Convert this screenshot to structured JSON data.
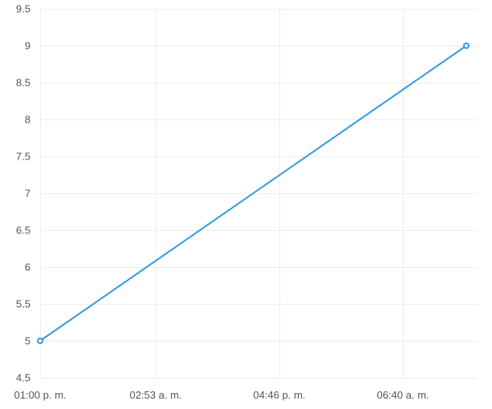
{
  "chart_data": {
    "type": "line",
    "title": "",
    "xlabel": "",
    "ylabel": "",
    "x_tick_labels": [
      "01:00 p. m.",
      "02:53 a. m.",
      "04:46 p. m.",
      "06:40 a. m."
    ],
    "y_ticks": [
      4.5,
      5,
      5.5,
      6,
      6.5,
      7,
      7.5,
      8,
      8.5,
      9,
      9.5
    ],
    "y_tick_labels": [
      "4.5",
      "5",
      "5.5",
      "6",
      "6.5",
      "7",
      "7.5",
      "8",
      "8.5",
      "9",
      "9.5"
    ],
    "ylim": [
      4.5,
      9.5
    ],
    "grid": true,
    "legend": "none",
    "series": [
      {
        "color": "#3399e6",
        "points": [
          {
            "x": "01:00 p. m.",
            "y": 5
          },
          {
            "x": "06:40 a. m. (+~4h)",
            "y": 9
          }
        ]
      }
    ]
  }
}
